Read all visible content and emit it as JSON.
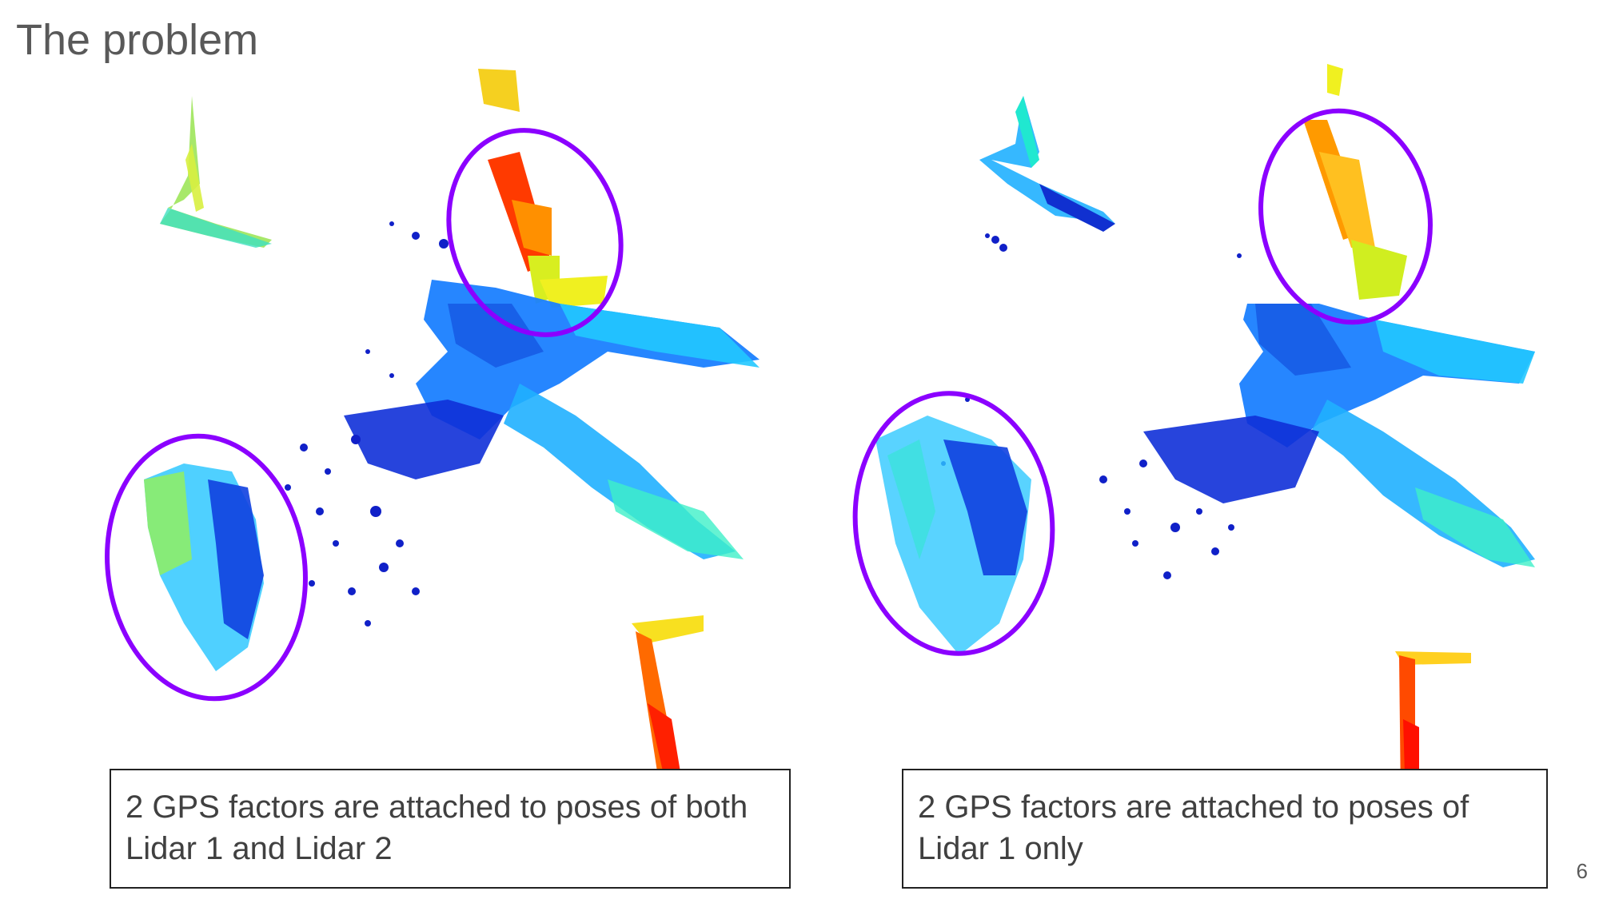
{
  "slide": {
    "title": "The problem",
    "page_number": "6"
  },
  "panels": [
    {
      "name": "left",
      "caption": "2 GPS factors are attached to poses of both Lidar 1 and Lidar 2",
      "highlight_color": "#8b00ff"
    },
    {
      "name": "right",
      "caption": "2 GPS factors are attached to poses of Lidar 1 only",
      "highlight_color": "#8b00ff"
    }
  ],
  "colormap": [
    "#0000c8",
    "#0050ff",
    "#00b4ff",
    "#00ffe0",
    "#7fff40",
    "#ffff00",
    "#ff8000",
    "#ff1000"
  ]
}
